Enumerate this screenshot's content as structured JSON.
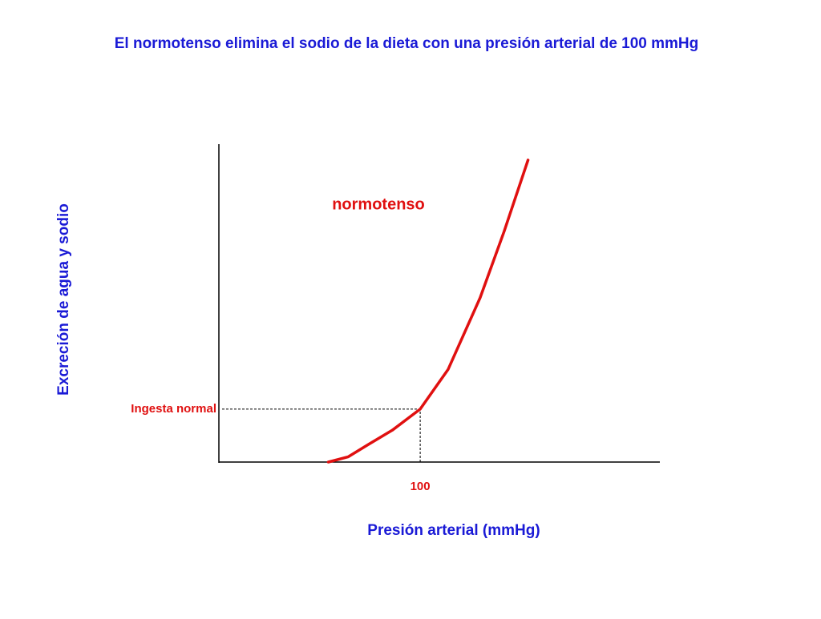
{
  "chart_data": {
    "type": "line",
    "title": "El normotenso elimina el sodio de la dieta con una presión arterial de 100 mmHg",
    "x_label": "Presión arterial (mmHg)",
    "y_label": "Excreción de agua y sodio",
    "xlim": [
      50,
      160
    ],
    "ylim": [
      0,
      6
    ],
    "xticks": [
      100
    ],
    "yticks": [
      {
        "value": 1,
        "label": "Ingesta normal"
      }
    ],
    "x": [
      77,
      82,
      87,
      93,
      100,
      107,
      115,
      121,
      127
    ],
    "series": [
      {
        "name": "normotenso",
        "color": "#e01010",
        "values": [
          0,
          0.1,
          0.33,
          0.6,
          1,
          1.75,
          3.1,
          4.35,
          5.7
        ]
      }
    ]
  }
}
